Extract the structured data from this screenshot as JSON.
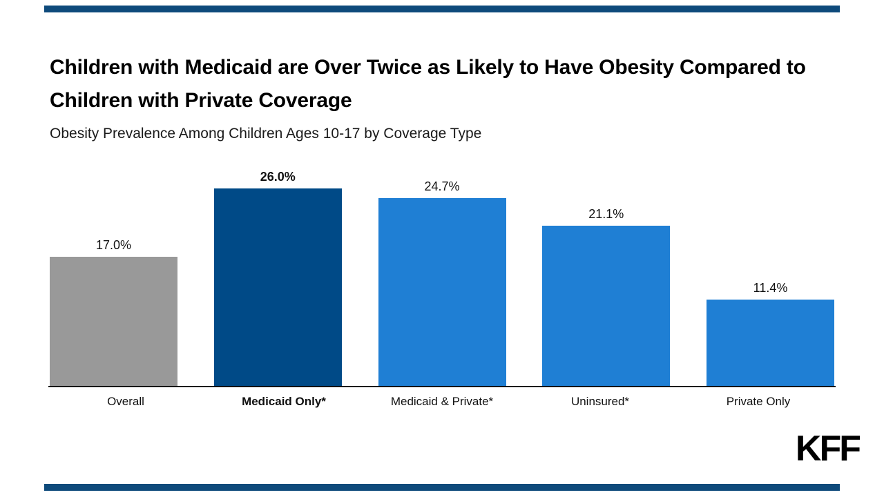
{
  "header": {
    "title": "Children with Medicaid are Over Twice as Likely to Have Obesity Compared to Children with Private Coverage",
    "subtitle": "Obesity Prevalence Among Children Ages 10-17 by Coverage Type"
  },
  "branding": {
    "logo_text": "KFF"
  },
  "colors": {
    "frame": "#0e4a7b",
    "overall_bar": "#999999",
    "highlight_bar": "#004a87",
    "default_bar": "#1f7fd4",
    "axis": "#111111"
  },
  "chart_data": {
    "type": "bar",
    "title": "Obesity Prevalence Among Children Ages 10-17 by Coverage Type",
    "xlabel": "",
    "ylabel": "",
    "ylim": [
      0,
      28
    ],
    "grid": false,
    "legend": null,
    "categories": [
      "Overall",
      "Medicaid Only*",
      "Medicaid & Private*",
      "Uninsured*",
      "Private Only"
    ],
    "values": [
      17.0,
      26.0,
      24.7,
      21.1,
      11.4
    ],
    "value_labels": [
      "17.0%",
      "26.0%",
      "24.7%",
      "21.1%",
      "11.4%"
    ],
    "bar_colors": [
      "#999999",
      "#004a87",
      "#1f7fd4",
      "#1f7fd4",
      "#1f7fd4"
    ],
    "emphasized": [
      false,
      true,
      false,
      false,
      false
    ]
  }
}
